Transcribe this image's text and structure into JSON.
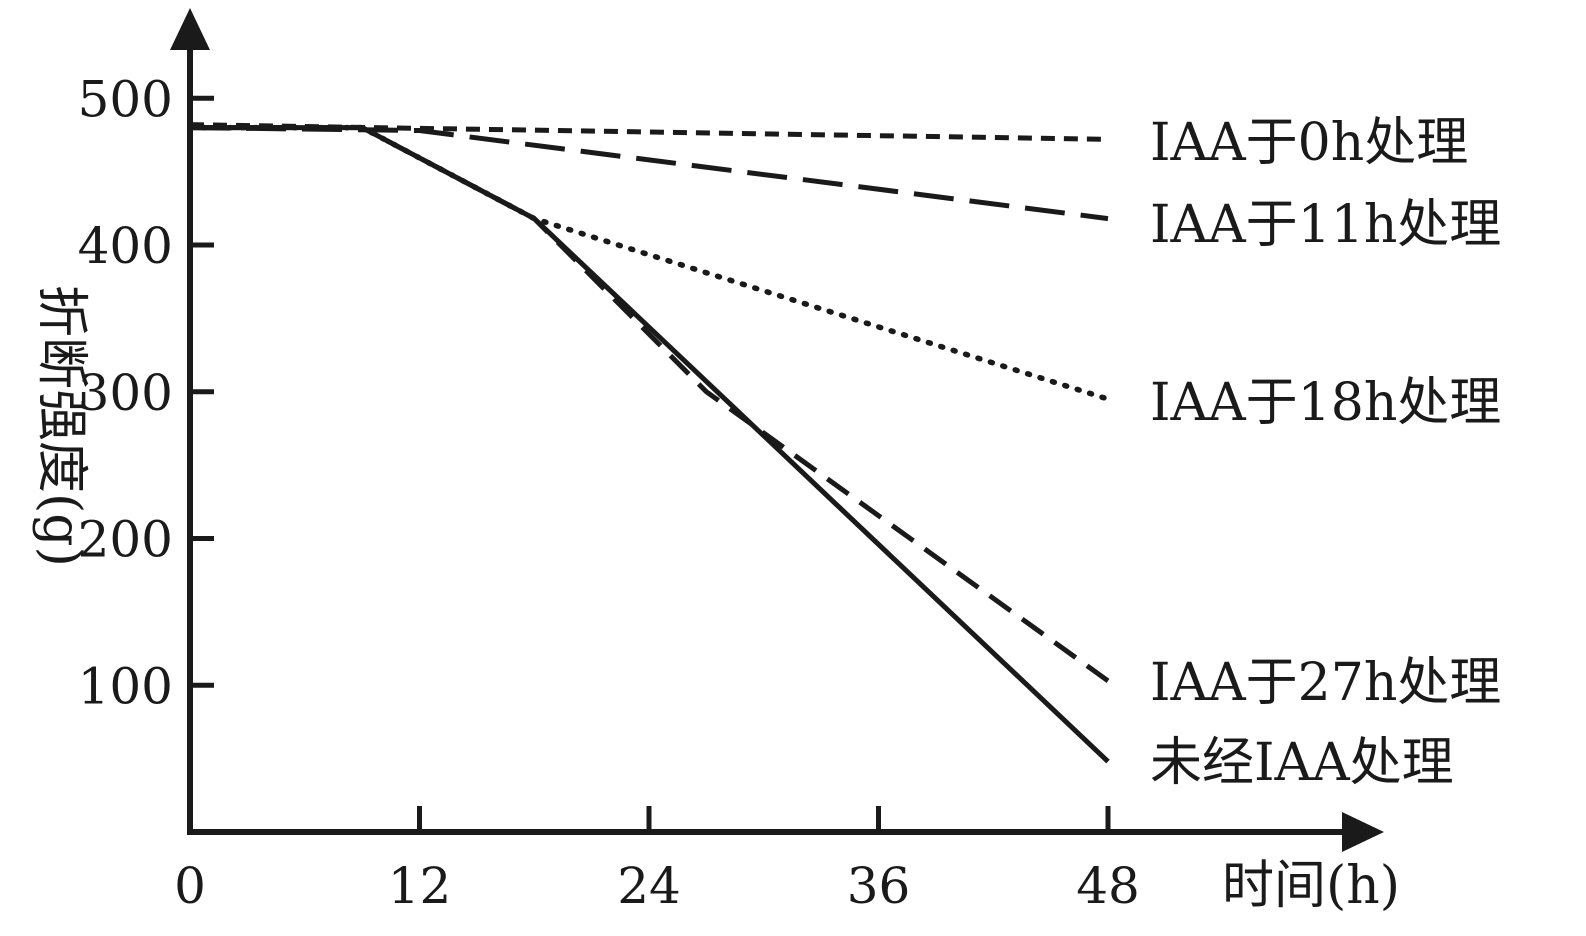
{
  "chart_data": {
    "type": "line",
    "title": "",
    "xlabel": "时间(h)",
    "ylabel": "折断强度(g)",
    "xlim": [
      0,
      52
    ],
    "ylim": [
      0,
      500
    ],
    "x_ticks": [
      0,
      12,
      24,
      36,
      48
    ],
    "y_ticks": [
      100,
      200,
      300,
      400,
      500
    ],
    "legend": "direct-labels-right",
    "grid": false,
    "series": [
      {
        "name": "IAA于0h处理",
        "style": "short-dash",
        "x": [
          0,
          48
        ],
        "y": [
          482,
          472
        ]
      },
      {
        "name": "IAA于11h处理",
        "style": "long-dash",
        "x": [
          0,
          12,
          48
        ],
        "y": [
          480,
          478,
          418
        ]
      },
      {
        "name": "IAA于18h处理",
        "style": "dotted",
        "x": [
          0,
          9,
          18,
          48
        ],
        "y": [
          480,
          480,
          418,
          295
        ]
      },
      {
        "name": "IAA于27h处理",
        "style": "dashed",
        "x": [
          0,
          9,
          18,
          27,
          48
        ],
        "y": [
          480,
          480,
          418,
          300,
          103
        ]
      },
      {
        "name": "未经IAA处理",
        "style": "solid",
        "x": [
          0,
          9,
          18,
          48
        ],
        "y": [
          480,
          480,
          418,
          48
        ]
      }
    ]
  }
}
